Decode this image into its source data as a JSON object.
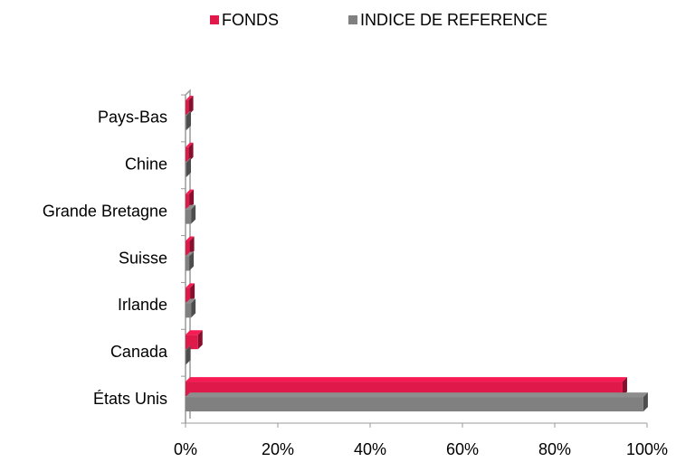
{
  "chart_data": {
    "type": "bar",
    "orientation": "horizontal",
    "categories": [
      "Pays-Bas",
      "Chine",
      "Grande Bretagne",
      "Suisse",
      "Irlande",
      "Canada",
      "États Unis"
    ],
    "series": [
      {
        "name": "FONDS",
        "color": "#e0194b",
        "values": [
          0.7,
          0.7,
          0.8,
          0.9,
          1.0,
          2.7,
          94.7
        ]
      },
      {
        "name": "INDICE DE REFERENCE",
        "color": "#808080",
        "values": [
          0.2,
          0.2,
          1.2,
          0.8,
          1.2,
          0.1,
          99.2
        ]
      }
    ],
    "xlim": [
      0,
      100
    ],
    "xticks": [
      {
        "value": 0,
        "label": "0%"
      },
      {
        "value": 20,
        "label": "20%"
      },
      {
        "value": 40,
        "label": "40%"
      },
      {
        "value": 60,
        "label": "60%"
      },
      {
        "value": 80,
        "label": "80%"
      },
      {
        "value": 100,
        "label": "100%"
      }
    ],
    "legend": "top"
  }
}
